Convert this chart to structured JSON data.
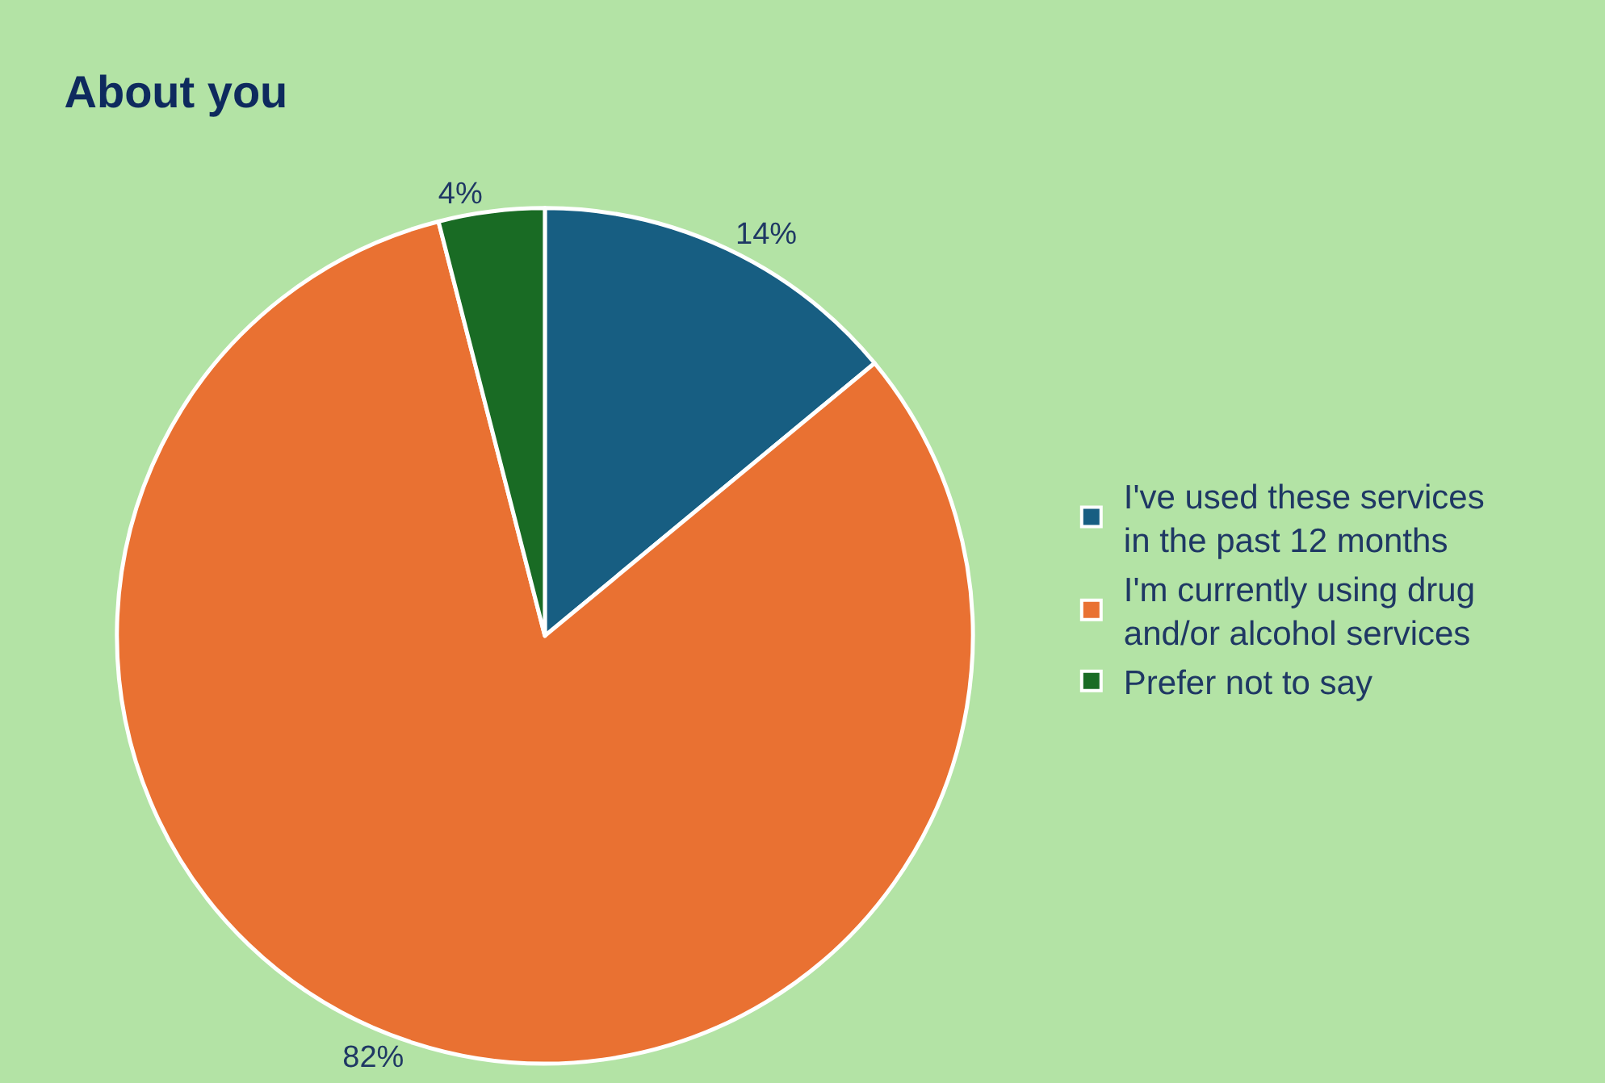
{
  "chart_data": {
    "type": "pie",
    "title": "About you",
    "categories": [
      "I've used these services in the past 12 months",
      "I'm currently using drug and/or alcohol services",
      "Prefer not to say"
    ],
    "values": [
      14,
      82,
      4
    ],
    "colors": [
      "#175e82",
      "#e97132",
      "#196b24"
    ],
    "value_labels": [
      "14%",
      "82%",
      "4%"
    ],
    "legend": "right"
  }
}
